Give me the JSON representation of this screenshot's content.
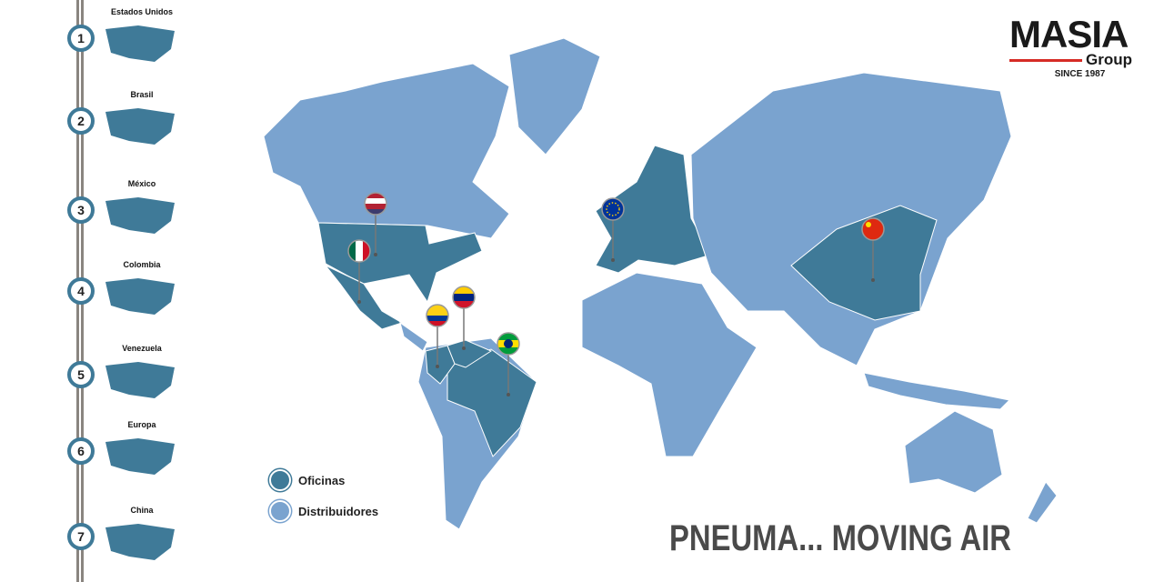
{
  "sidebar": {
    "items": [
      {
        "num": "1",
        "label": "Estados Unidos"
      },
      {
        "num": "2",
        "label": "Brasil"
      },
      {
        "num": "3",
        "label": "México"
      },
      {
        "num": "4",
        "label": "Colombia"
      },
      {
        "num": "5",
        "label": "Venezuela"
      },
      {
        "num": "6",
        "label": "Europa"
      },
      {
        "num": "7",
        "label": "China"
      }
    ]
  },
  "logo": {
    "name": "MASIA",
    "group": "Group",
    "since": "SINCE 1987"
  },
  "legend": {
    "offices": "Oficinas",
    "distributors": "Distribuidores"
  },
  "tagline": "PNEUMA... MOVING AIR",
  "colors": {
    "offices": "#3f7a98",
    "distributors": "#7aa3cf",
    "accent": "#d62b25"
  }
}
